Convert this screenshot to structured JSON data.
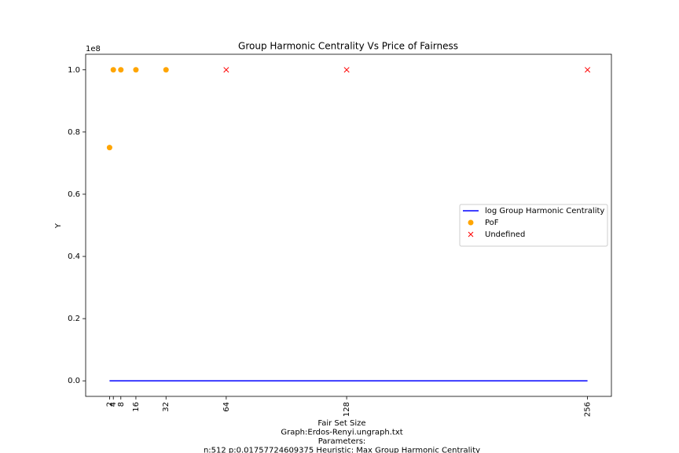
{
  "chart_data": {
    "type": "scatter",
    "title": "Group Harmonic Centrality Vs Price of Fairness",
    "xlabel": [
      "Fair Set Size",
      "Graph:Erdos-Renyi.ungraph.txt",
      "Parameters:",
      "n:512 p:0.01757724609375  Heuristic: Max Group Harmonic Centrality"
    ],
    "ylabel": "Y",
    "y_offset_label": "1e8",
    "xlim": [
      -10.7,
      268.7
    ],
    "ylim": [
      -5000000,
      105000000
    ],
    "xticks": [
      2,
      4,
      8,
      16,
      32,
      64,
      128,
      256
    ],
    "yticks": [
      {
        "value": 0,
        "label": "0.0"
      },
      {
        "value": 20000000,
        "label": "0.2"
      },
      {
        "value": 40000000,
        "label": "0.4"
      },
      {
        "value": 60000000,
        "label": "0.6"
      },
      {
        "value": 80000000,
        "label": "0.8"
      },
      {
        "value": 100000000,
        "label": "1.0"
      }
    ],
    "legend_position": "center right",
    "series": [
      {
        "name": "log Group Harmonic Centrality",
        "color": "#0000ff",
        "marker": "line",
        "x": [
          2,
          4,
          8,
          16,
          32,
          64,
          128,
          256
        ],
        "values": [
          0,
          0,
          0,
          0,
          0,
          0,
          0,
          0
        ]
      },
      {
        "name": "PoF",
        "color": "#ffa500",
        "marker": "o",
        "x": [
          2,
          4,
          8,
          16,
          32
        ],
        "values": [
          75000000,
          100000000,
          100000000,
          100000000,
          100000000
        ]
      },
      {
        "name": "Undefined",
        "color": "#ff0000",
        "marker": "x",
        "x": [
          64,
          128,
          256
        ],
        "values": [
          100000000,
          100000000,
          100000000
        ]
      }
    ]
  }
}
